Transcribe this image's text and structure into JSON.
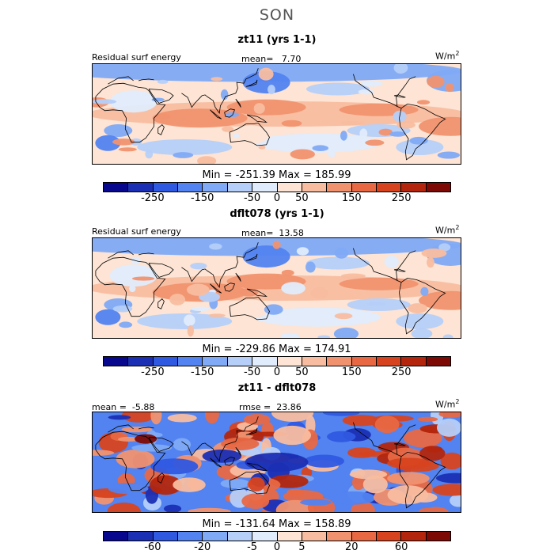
{
  "season_title": "SON",
  "colors": [
    "#08088f",
    "#1b2fb4",
    "#2f59e0",
    "#5283f0",
    "#80aaf5",
    "#b5cff9",
    "#e0ecfc",
    "#fde4d4",
    "#f8bda0",
    "#f1926f",
    "#e86843",
    "#d7431e",
    "#b3260d",
    "#7e0a05"
  ],
  "panels": [
    {
      "title": "zt11 (yrs 1-1)",
      "left_label": "Residual surf energy",
      "center_label": "mean=   7.70",
      "units_base": "W/m",
      "units_sup": "2",
      "min_max": "Min = -251.39 Max = 185.99",
      "colorbar_ticks": [
        "-250",
        "-150",
        "-50",
        "0",
        "50",
        "150",
        "250"
      ]
    },
    {
      "title": "dflt078 (yrs 1-1)",
      "left_label": "Residual surf energy",
      "center_label": "mean=  13.58",
      "units_base": "W/m",
      "units_sup": "2",
      "min_max": "Min = -229.86 Max = 174.91",
      "colorbar_ticks": [
        "-250",
        "-150",
        "-50",
        "0",
        "50",
        "150",
        "250"
      ]
    },
    {
      "title": "zt11 - dflt078",
      "left_label": "mean =  -5.88",
      "center_label": "rmse =  23.86",
      "units_base": "W/m",
      "units_sup": "2",
      "min_max": "Min = -131.64 Max = 158.89",
      "colorbar_ticks": [
        "-60",
        "-20",
        "-5",
        "0",
        "5",
        "20",
        "60"
      ]
    }
  ]
}
